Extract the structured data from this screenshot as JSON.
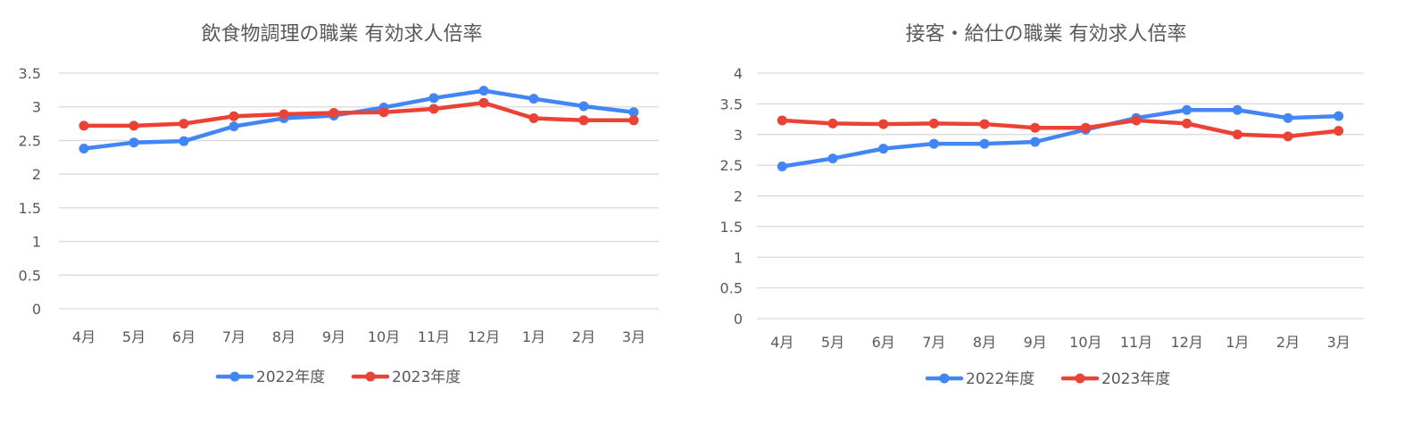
{
  "chart_data": [
    {
      "type": "line",
      "title": "飲食物調理の職業 有効求人倍率",
      "categories": [
        "4月",
        "5月",
        "6月",
        "7月",
        "8月",
        "9月",
        "10月",
        "11月",
        "12月",
        "1月",
        "2月",
        "3月"
      ],
      "ylim": [
        0,
        3.5
      ],
      "yticks": [
        "0",
        "0.5",
        "1",
        "1.5",
        "2",
        "2.5",
        "3",
        "3.5"
      ],
      "grid": true,
      "legend_position": "bottom",
      "series": [
        {
          "name": "2022年度",
          "color": "#4285F4",
          "values": [
            2.38,
            2.47,
            2.49,
            2.71,
            2.83,
            2.87,
            2.99,
            3.13,
            3.24,
            3.12,
            3.01,
            2.92
          ]
        },
        {
          "name": "2023年度",
          "color": "#EA4335",
          "values": [
            2.72,
            2.72,
            2.75,
            2.86,
            2.89,
            2.91,
            2.92,
            2.97,
            3.06,
            2.83,
            2.8,
            2.8
          ]
        }
      ]
    },
    {
      "type": "line",
      "title": "接客・給仕の職業 有効求人倍率",
      "categories": [
        "4月",
        "5月",
        "6月",
        "7月",
        "8月",
        "9月",
        "10月",
        "11月",
        "12月",
        "1月",
        "2月",
        "3月"
      ],
      "ylim": [
        0,
        4
      ],
      "yticks": [
        "0",
        "0.5",
        "1",
        "1.5",
        "2",
        "2.5",
        "3",
        "3.5",
        "4"
      ],
      "grid": true,
      "legend_position": "bottom",
      "series": [
        {
          "name": "2022年度",
          "color": "#4285F4",
          "values": [
            2.48,
            2.61,
            2.77,
            2.85,
            2.85,
            2.88,
            3.08,
            3.27,
            3.4,
            3.4,
            3.27,
            3.3
          ]
        },
        {
          "name": "2023年度",
          "color": "#EA4335",
          "values": [
            3.23,
            3.18,
            3.17,
            3.18,
            3.17,
            3.11,
            3.11,
            3.23,
            3.18,
            3.0,
            2.97,
            3.06
          ]
        }
      ]
    }
  ]
}
